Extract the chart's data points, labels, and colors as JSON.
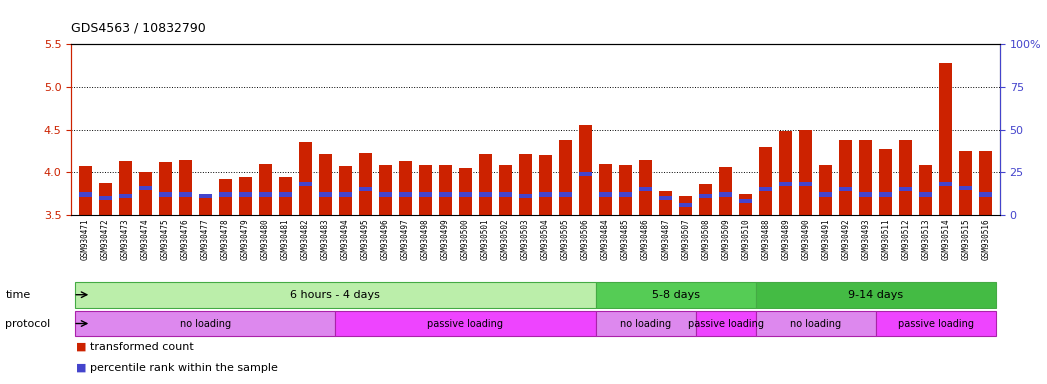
{
  "title": "GDS4563 / 10832790",
  "samples": [
    "GSM930471",
    "GSM930472",
    "GSM930473",
    "GSM930474",
    "GSM930475",
    "GSM930476",
    "GSM930477",
    "GSM930478",
    "GSM930479",
    "GSM930480",
    "GSM930481",
    "GSM930482",
    "GSM930483",
    "GSM930494",
    "GSM930495",
    "GSM930496",
    "GSM930497",
    "GSM930498",
    "GSM930499",
    "GSM930500",
    "GSM930501",
    "GSM930502",
    "GSM930503",
    "GSM930504",
    "GSM930505",
    "GSM930506",
    "GSM930484",
    "GSM930485",
    "GSM930486",
    "GSM930487",
    "GSM930507",
    "GSM930508",
    "GSM930509",
    "GSM930510",
    "GSM930488",
    "GSM930489",
    "GSM930490",
    "GSM930491",
    "GSM930492",
    "GSM930493",
    "GSM930511",
    "GSM930512",
    "GSM930513",
    "GSM930514",
    "GSM930515",
    "GSM930516"
  ],
  "bar_values": [
    4.07,
    3.88,
    4.13,
    4.0,
    4.12,
    4.14,
    3.72,
    3.92,
    3.95,
    4.1,
    3.95,
    4.36,
    4.22,
    4.07,
    4.23,
    4.08,
    4.13,
    4.08,
    4.08,
    4.05,
    4.22,
    4.08,
    4.22,
    4.2,
    4.38,
    4.55,
    4.1,
    4.08,
    4.15,
    3.78,
    3.72,
    3.86,
    4.06,
    3.75,
    4.3,
    4.48,
    4.5,
    4.08,
    4.38,
    4.38,
    4.27,
    4.38,
    4.08,
    5.28,
    4.25,
    4.25
  ],
  "blue_marker_values": [
    3.74,
    3.7,
    3.72,
    3.82,
    3.74,
    3.74,
    3.72,
    3.74,
    3.74,
    3.74,
    3.74,
    3.86,
    3.74,
    3.74,
    3.8,
    3.74,
    3.74,
    3.74,
    3.74,
    3.74,
    3.74,
    3.74,
    3.72,
    3.74,
    3.74,
    3.98,
    3.74,
    3.74,
    3.8,
    3.7,
    3.62,
    3.72,
    3.74,
    3.66,
    3.8,
    3.86,
    3.86,
    3.74,
    3.8,
    3.74,
    3.74,
    3.8,
    3.74,
    3.86,
    3.82,
    3.74
  ],
  "bar_color": "#cc2200",
  "blue_color": "#4444cc",
  "bar_bottom": 3.5,
  "ylim_left": [
    3.5,
    5.5
  ],
  "ylim_right": [
    0,
    100
  ],
  "yticks_left": [
    3.5,
    4.0,
    4.5,
    5.0,
    5.5
  ],
  "yticks_right": [
    0,
    25,
    50,
    75,
    100
  ],
  "ylabel_left_color": "#cc2200",
  "ylabel_right_color": "#4444cc",
  "grid_values": [
    4.0,
    4.5,
    5.0
  ],
  "time_groups": [
    {
      "label": "6 hours - 4 days",
      "start": 0,
      "end": 26,
      "color": "#bbeeaa",
      "edge": "#44aa44"
    },
    {
      "label": "5-8 days",
      "start": 26,
      "end": 34,
      "color": "#55cc55",
      "edge": "#44aa44"
    },
    {
      "label": "9-14 days",
      "start": 34,
      "end": 46,
      "color": "#44bb44",
      "edge": "#44aa44"
    }
  ],
  "protocol_groups": [
    {
      "label": "no loading",
      "start": 0,
      "end": 13,
      "color": "#dd88ee",
      "edge": "#aa22aa"
    },
    {
      "label": "passive loading",
      "start": 13,
      "end": 26,
      "color": "#ee44ff",
      "edge": "#aa22aa"
    },
    {
      "label": "no loading",
      "start": 26,
      "end": 31,
      "color": "#dd88ee",
      "edge": "#aa22aa"
    },
    {
      "label": "passive loading",
      "start": 31,
      "end": 34,
      "color": "#ee44ff",
      "edge": "#aa22aa"
    },
    {
      "label": "no loading",
      "start": 34,
      "end": 40,
      "color": "#dd88ee",
      "edge": "#aa22aa"
    },
    {
      "label": "passive loading",
      "start": 40,
      "end": 46,
      "color": "#ee44ff",
      "edge": "#aa22aa"
    }
  ],
  "legend_labels": [
    "transformed count",
    "percentile rank within the sample"
  ],
  "legend_colors": [
    "#cc2200",
    "#4444cc"
  ],
  "background_color": "#ffffff",
  "chart_bg": "#ffffff",
  "tick_area_bg": "#dddddd"
}
